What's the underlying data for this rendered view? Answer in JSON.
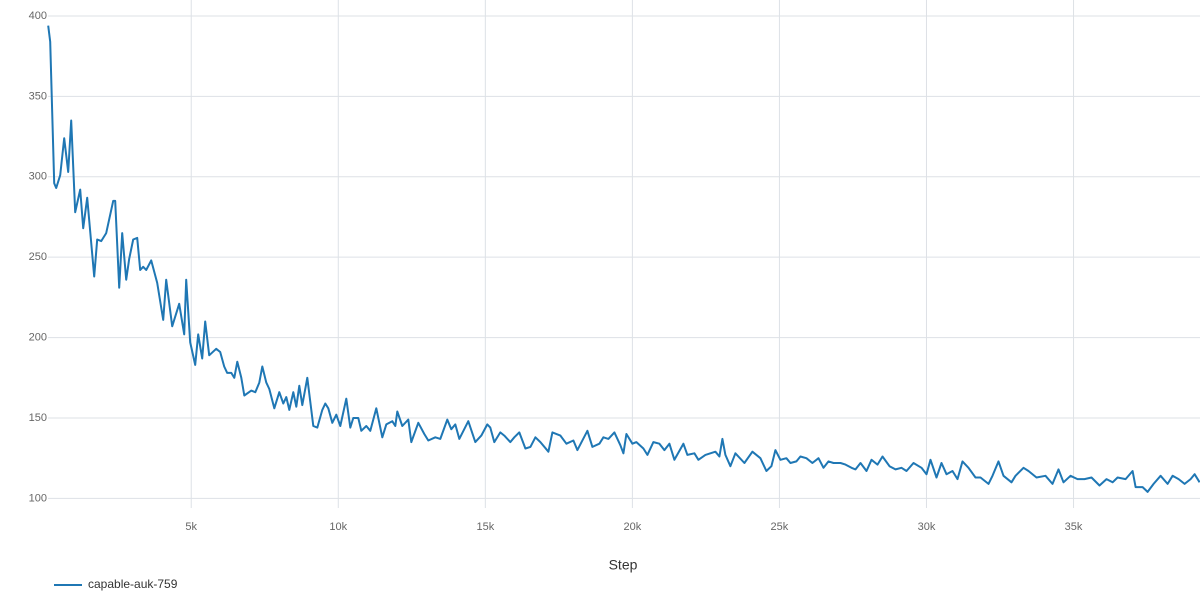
{
  "chart_data": {
    "type": "line",
    "x_label": "Step",
    "x": [
      136,
      204,
      340,
      408,
      544,
      680,
      816,
      918,
      1054,
      1224,
      1327,
      1463,
      1700,
      1803,
      1939,
      2109,
      2347,
      2415,
      2551,
      2653,
      2789,
      2891,
      3027,
      3163,
      3265,
      3367,
      3469,
      3639,
      3844,
      4048,
      4150,
      4354,
      4592,
      4762,
      4830,
      4966,
      5136,
      5238,
      5374,
      5476,
      5612,
      5850,
      5986,
      6122,
      6224,
      6361,
      6463,
      6565,
      6701,
      6803,
      7041,
      7177,
      7313,
      7415,
      7551,
      7653,
      7823,
      7993,
      8129,
      8231,
      8333,
      8469,
      8571,
      8673,
      8775,
      8946,
      9150,
      9286,
      9456,
      9558,
      9660,
      9796,
      9932,
      10068,
      10272,
      10408,
      10510,
      10680,
      10782,
      10952,
      11088,
      11292,
      11497,
      11633,
      11837,
      11939,
      12007,
      12177,
      12381,
      12483,
      12721,
      12925,
      13061,
      13299,
      13469,
      13707,
      13843,
      13979,
      14115,
      14422,
      14660,
      14864,
      15068,
      15170,
      15306,
      15510,
      15646,
      15850,
      15986,
      16156,
      16361,
      16531,
      16701,
      16871,
      17143,
      17279,
      17551,
      17755,
      17993,
      18129,
      18469,
      18639,
      18878,
      19014,
      19184,
      19388,
      19592,
      19694,
      19796,
      20000,
      20136,
      20374,
      20510,
      20714,
      20918,
      21088,
      21259,
      21429,
      21735,
      21871,
      22109,
      22245,
      22483,
      22823,
      22959,
      23061,
      23163,
      23333,
      23503,
      23809,
      24082,
      24354,
      24558,
      24728,
      24864,
      25034,
      25238,
      25374,
      25578,
      25714,
      25918,
      26122,
      26327,
      26497,
      26667,
      26837,
      27075,
      27245,
      27449,
      27585,
      27755,
      27959,
      28129,
      28333,
      28503,
      28741,
      28946,
      29150,
      29320,
      29558,
      29830,
      30000,
      30136,
      30340,
      30510,
      30680,
      30884,
      31054,
      31224,
      31429,
      31667,
      31837,
      32109,
      32245,
      32449,
      32619,
      32891,
      33027,
      33299,
      33469,
      33741,
      34048,
      34286,
      34490,
      34660,
      34898,
      35136,
      35374,
      35612,
      35884,
      36122,
      36327,
      36497,
      36769,
      37007,
      37109,
      37347,
      37517,
      37721,
      37959,
      38197,
      38367,
      38571,
      38776,
      38980,
      39116,
      39286
    ],
    "series": [
      {
        "name": "capable-auk-759",
        "color": "#1f77b4",
        "values": [
          394,
          384,
          296,
          293,
          301,
          324,
          303,
          335,
          278,
          292,
          268,
          287,
          238,
          261,
          260,
          265,
          285,
          285,
          231,
          265,
          236,
          249,
          261,
          262,
          242,
          244,
          242,
          248,
          234,
          211,
          236,
          207,
          221,
          202,
          236,
          197,
          183,
          202,
          187,
          210,
          189,
          193,
          191,
          182,
          178,
          178,
          175,
          185,
          175,
          164,
          167,
          166,
          172,
          182,
          172,
          168,
          156,
          166,
          159,
          163,
          155,
          166,
          157,
          170,
          158,
          175,
          145,
          144,
          155,
          159,
          156,
          147,
          152,
          145,
          162,
          144,
          150,
          150,
          142,
          145,
          142,
          156,
          138,
          146,
          148,
          145,
          154,
          145,
          149,
          135,
          147,
          140,
          136,
          138,
          137,
          149,
          143,
          146,
          137,
          148,
          135,
          139,
          146,
          144,
          135,
          141,
          139,
          135,
          138,
          141,
          131,
          132,
          138,
          135,
          129,
          141,
          139,
          134,
          136,
          130,
          142,
          132,
          134,
          138,
          137,
          141,
          133,
          128,
          140,
          134,
          135,
          131,
          127,
          135,
          134,
          130,
          134,
          124,
          134,
          127,
          128,
          124,
          127,
          129,
          126,
          137,
          127,
          120,
          128,
          122,
          129,
          125,
          117,
          120,
          130,
          124,
          125,
          122,
          123,
          126,
          125,
          122,
          125,
          119,
          123,
          122,
          122,
          121,
          119,
          118,
          122,
          117,
          124,
          121,
          126,
          120,
          118,
          119,
          117,
          122,
          119,
          115,
          124,
          113,
          122,
          115,
          117,
          112,
          123,
          119,
          113,
          113,
          109,
          114,
          123,
          114,
          110,
          114,
          119,
          117,
          113,
          114,
          109,
          118,
          110,
          114,
          112,
          112,
          113,
          108,
          112,
          110,
          113,
          112,
          117,
          107,
          107,
          104,
          109,
          114,
          109,
          114,
          112,
          109,
          112,
          115,
          110
        ]
      }
    ],
    "xlim": [
      130,
      39300
    ],
    "ylim": [
      94,
      400
    ],
    "xticks": [
      {
        "value": 5000,
        "label": "5k"
      },
      {
        "value": 10000,
        "label": "10k"
      },
      {
        "value": 15000,
        "label": "15k"
      },
      {
        "value": 20000,
        "label": "20k"
      },
      {
        "value": 25000,
        "label": "25k"
      },
      {
        "value": 30000,
        "label": "30k"
      },
      {
        "value": 35000,
        "label": "35k"
      }
    ],
    "yticks": [
      100,
      150,
      200,
      250,
      300,
      350,
      400
    ],
    "grid": true,
    "legend": "bottom-left"
  }
}
